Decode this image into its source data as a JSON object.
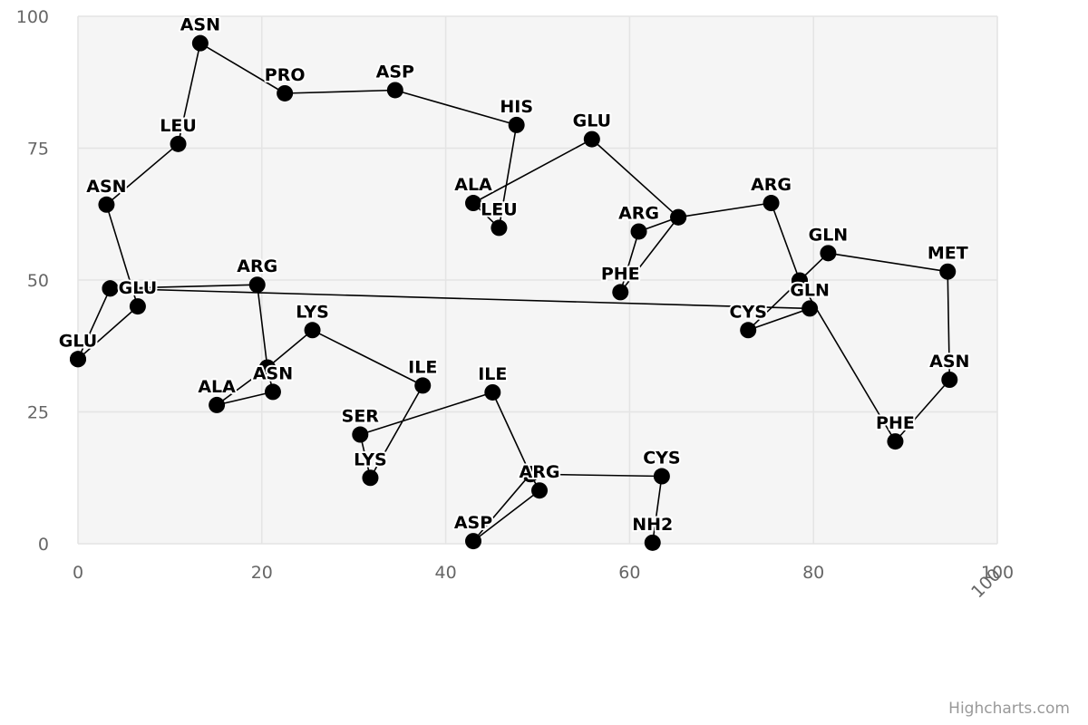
{
  "chart_data": {
    "type": "scatter",
    "title": "",
    "xlabel": "",
    "ylabel": "",
    "xlim": [
      0,
      100
    ],
    "ylim": [
      0,
      100
    ],
    "x_ticks": [
      "0",
      "20",
      "40",
      "60",
      "80",
      "100"
    ],
    "y_ticks": [
      "0",
      "25",
      "50",
      "75",
      "100"
    ],
    "grid": true,
    "colors": {
      "plot_background": "#f5f5f5",
      "grid": "#e4e4e4",
      "line": "#000000",
      "marker": "#000000"
    },
    "points": [
      {
        "label": "",
        "x": 0,
        "y": 35
      },
      {
        "label": "GLU",
        "x": 6.5,
        "y": 45
      },
      {
        "label": "ASN",
        "x": 3.1,
        "y": 64.3
      },
      {
        "label": "LEU",
        "x": 10.9,
        "y": 75.8
      },
      {
        "label": "ASN",
        "x": 13.3,
        "y": 94.9
      },
      {
        "label": "PRO",
        "x": 22.5,
        "y": 85.4
      },
      {
        "label": "ASP",
        "x": 34.5,
        "y": 86
      },
      {
        "label": "HIS",
        "x": 47.7,
        "y": 79.4
      },
      {
        "label": "LEU",
        "x": 45.8,
        "y": 59.9
      },
      {
        "label": "ALA",
        "x": 43,
        "y": 64.6
      },
      {
        "label": "GLU",
        "x": 55.9,
        "y": 76.7
      },
      {
        "label": "",
        "x": 65.3,
        "y": 61.9
      },
      {
        "label": "ARG",
        "x": 61,
        "y": 59.2
      },
      {
        "label": "PHE",
        "x": 59,
        "y": 47.7
      },
      {
        "label": "",
        "x": 65.3,
        "y": 61.9
      },
      {
        "label": "ARG",
        "x": 75.4,
        "y": 64.6
      },
      {
        "label": "",
        "x": 78.5,
        "y": 49.9
      },
      {
        "label": "GLN",
        "x": 81.6,
        "y": 55.1
      },
      {
        "label": "MET",
        "x": 94.6,
        "y": 51.6
      },
      {
        "label": "ASN",
        "x": 94.8,
        "y": 31.1
      },
      {
        "label": "PHE",
        "x": 88.9,
        "y": 19.4
      },
      {
        "label": "",
        "x": 78.5,
        "y": 49.9
      },
      {
        "label": "CYS",
        "x": 72.9,
        "y": 40.5
      },
      {
        "label": "GLN",
        "x": 79.6,
        "y": 44.6
      },
      {
        "label": "",
        "x": 3.5,
        "y": 48.4
      },
      {
        "label": "GLU",
        "x": 0,
        "y": 35
      },
      {
        "label": "",
        "x": 3.5,
        "y": 48.4
      },
      {
        "label": "ARG",
        "x": 19.5,
        "y": 49.1
      },
      {
        "label": "",
        "x": 20.6,
        "y": 33.4
      },
      {
        "label": "ALA",
        "x": 15.1,
        "y": 26.3
      },
      {
        "label": "ASN",
        "x": 21.2,
        "y": 28.8
      },
      {
        "label": "",
        "x": 20.6,
        "y": 33.4
      },
      {
        "label": "LYS",
        "x": 25.5,
        "y": 40.5
      },
      {
        "label": "ILE",
        "x": 37.5,
        "y": 30
      },
      {
        "label": "LYS",
        "x": 31.8,
        "y": 12.5
      },
      {
        "label": "SER",
        "x": 30.7,
        "y": 20.7
      },
      {
        "label": "ILE",
        "x": 45.1,
        "y": 28.7
      },
      {
        "label": "",
        "x": 49.2,
        "y": 13.2
      },
      {
        "label": "ARG",
        "x": 50.2,
        "y": 10.1
      },
      {
        "label": "ASP",
        "x": 43,
        "y": 0.5
      },
      {
        "label": "",
        "x": 49.2,
        "y": 13.2
      },
      {
        "label": "CYS",
        "x": 63.5,
        "y": 12.8
      },
      {
        "label": "NH2",
        "x": 62.5,
        "y": 0.2
      }
    ]
  },
  "credits": "Highcharts.com"
}
